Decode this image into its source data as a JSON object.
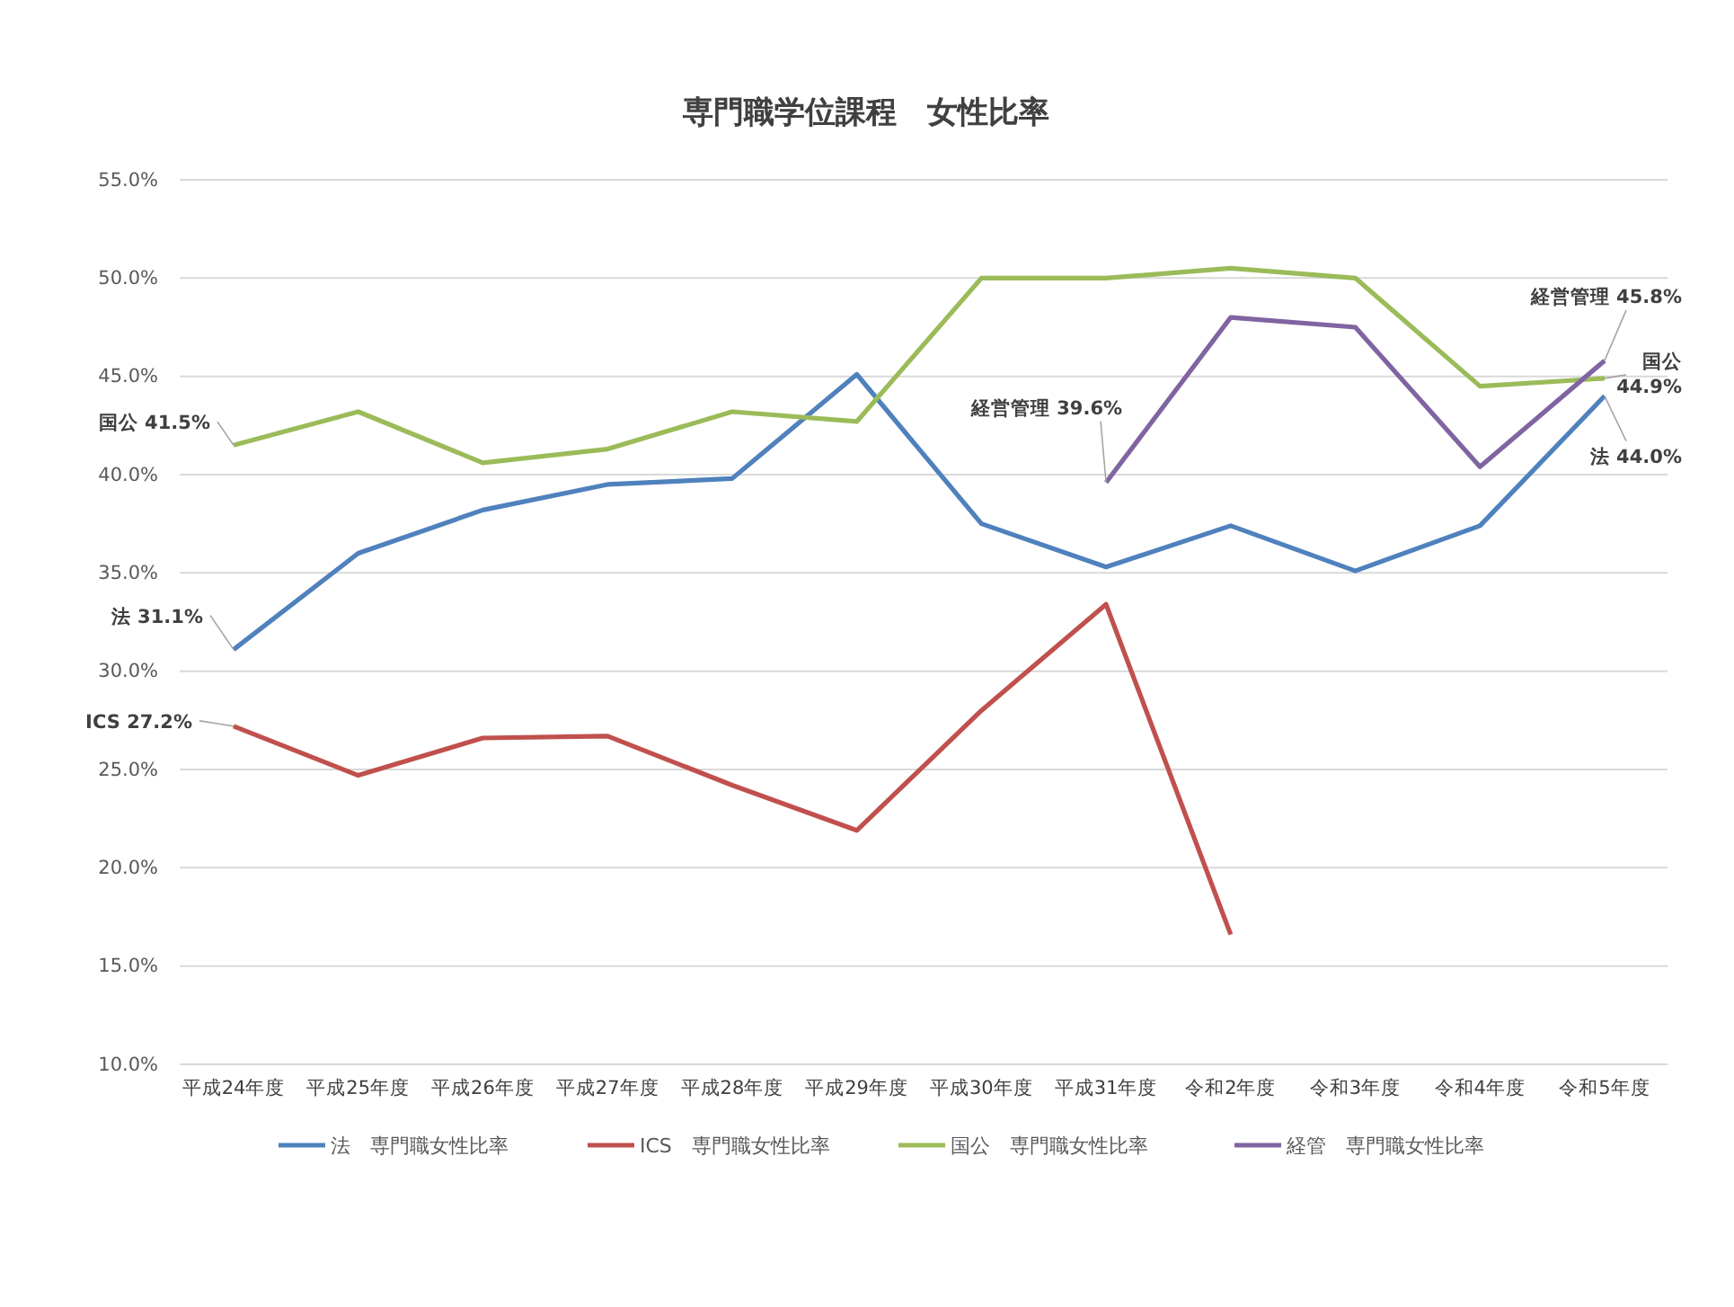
{
  "chart_data": {
    "type": "line",
    "title": "専門職学位課程　女性比率",
    "categories": [
      "平成24年度",
      "平成25年度",
      "平成26年度",
      "平成27年度",
      "平成28年度",
      "平成29年度",
      "平成30年度",
      "平成31年度",
      "令和2年度",
      "令和3年度",
      "令和4年度",
      "令和5年度"
    ],
    "series": [
      {
        "name": "法　専門職女性比率",
        "color": "#4f81bd",
        "values": [
          31.1,
          36.0,
          38.2,
          39.5,
          39.8,
          45.1,
          37.5,
          35.3,
          37.4,
          35.1,
          37.4,
          44.0
        ]
      },
      {
        "name": "ICS　専門職女性比率",
        "color": "#c0504d",
        "values": [
          27.2,
          24.7,
          26.6,
          26.7,
          24.2,
          21.9,
          28.0,
          33.4,
          16.6,
          null,
          null,
          null
        ]
      },
      {
        "name": "国公　専門職女性比率",
        "color": "#9bbb59",
        "values": [
          41.5,
          43.2,
          40.6,
          41.3,
          43.2,
          42.7,
          50.0,
          50.0,
          50.5,
          50.0,
          44.5,
          44.9
        ]
      },
      {
        "name": "経管　専門職女性比率",
        "color": "#8064a2",
        "values": [
          null,
          null,
          null,
          null,
          null,
          null,
          null,
          39.6,
          48.0,
          47.5,
          40.4,
          45.8
        ]
      }
    ],
    "ylim": [
      10,
      55
    ],
    "yticks": [
      {
        "value": 10,
        "label": "10.0%"
      },
      {
        "value": 15,
        "label": "15.0%"
      },
      {
        "value": 20,
        "label": "20.0%"
      },
      {
        "value": 25,
        "label": "25.0%"
      },
      {
        "value": 30,
        "label": "30.0%"
      },
      {
        "value": 35,
        "label": "35.0%"
      },
      {
        "value": 40,
        "label": "40.0%"
      },
      {
        "value": 45,
        "label": "45.0%"
      },
      {
        "value": 50,
        "label": "50.0%"
      },
      {
        "value": 55,
        "label": "55.0%"
      }
    ],
    "grid": "y",
    "legend": "bottom",
    "marker": "none",
    "line_style": "solid",
    "annotations": [
      {
        "text": "国公 41.5%",
        "x": "平成24年度",
        "y": 41.5
      },
      {
        "text": "法 31.1%",
        "x": "平成24年度",
        "y": 31.1
      },
      {
        "text": "ICS 27.2%",
        "x": "平成24年度",
        "y": 27.2
      },
      {
        "text": "経営管理 39.6%",
        "x": "平成31年度",
        "y": 39.6
      },
      {
        "text": "経営管理 45.8%",
        "x": "令和5年度",
        "y": 45.8
      },
      {
        "text": "国公 44.9%",
        "x": "令和5年度",
        "y": 44.9
      },
      {
        "text": "法 44.0%",
        "x": "令和5年度",
        "y": 44.0
      }
    ]
  }
}
